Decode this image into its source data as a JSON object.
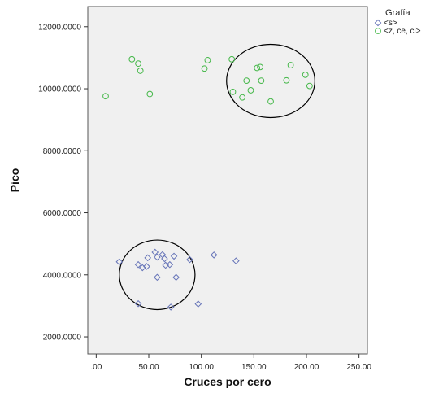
{
  "chart_data": {
    "type": "scatter",
    "xlabel": "Cruces por cero",
    "ylabel": "Pico",
    "xlim": [
      -8,
      258
    ],
    "ylim": [
      1450,
      12650
    ],
    "x_ticks": [
      0,
      50,
      100,
      150,
      200,
      250
    ],
    "x_tick_labels": [
      ".00",
      "50.00",
      "100.00",
      "150.00",
      "200.00",
      "250.00"
    ],
    "y_ticks": [
      2000,
      4000,
      6000,
      8000,
      10000,
      12000
    ],
    "y_tick_labels": [
      "2000.0000",
      "4000.0000",
      "6000.0000",
      "8000.0000",
      "10000.0000",
      "12000.0000"
    ],
    "grid": false,
    "background": "#f0f0f0",
    "legend": {
      "title": "Grafía",
      "placement": "top-right-outside"
    },
    "series": [
      {
        "name": "<s>",
        "marker": "diamond",
        "color": "#6674b8",
        "points": [
          [
            22,
            4420
          ],
          [
            40,
            4330
          ],
          [
            44,
            4230
          ],
          [
            48,
            4270
          ],
          [
            49,
            4550
          ],
          [
            56,
            4730
          ],
          [
            58,
            3920
          ],
          [
            58,
            4570
          ],
          [
            63,
            4650
          ],
          [
            65,
            4520
          ],
          [
            66,
            4310
          ],
          [
            70,
            4330
          ],
          [
            74,
            4600
          ],
          [
            76,
            3920
          ],
          [
            89,
            4490
          ],
          [
            112,
            4640
          ],
          [
            133,
            4450
          ],
          [
            40,
            3070
          ],
          [
            71,
            2960
          ],
          [
            97,
            3060
          ]
        ]
      },
      {
        "name": "<z, ce, ci>",
        "marker": "circle",
        "color": "#46b84a",
        "points": [
          [
            9,
            9760
          ],
          [
            34,
            10950
          ],
          [
            40,
            10810
          ],
          [
            42,
            10580
          ],
          [
            51,
            9830
          ],
          [
            103,
            10650
          ],
          [
            106,
            10920
          ],
          [
            129,
            10950
          ],
          [
            130,
            9900
          ],
          [
            139,
            9720
          ],
          [
            143,
            10260
          ],
          [
            147,
            9950
          ],
          [
            153,
            10670
          ],
          [
            156,
            10700
          ],
          [
            157,
            10260
          ],
          [
            166,
            9590
          ],
          [
            181,
            10270
          ],
          [
            185,
            10760
          ],
          [
            199,
            10450
          ],
          [
            203,
            10090
          ]
        ]
      }
    ],
    "annotations": [
      {
        "shape": "ellipse",
        "center": [
          166,
          10250
        ],
        "radius_x": 42,
        "radius_y": 1180,
        "color": "#000000"
      },
      {
        "shape": "ellipse",
        "center": [
          58,
          4000
        ],
        "radius_x": 36,
        "radius_y": 1120,
        "color": "#000000"
      }
    ]
  }
}
